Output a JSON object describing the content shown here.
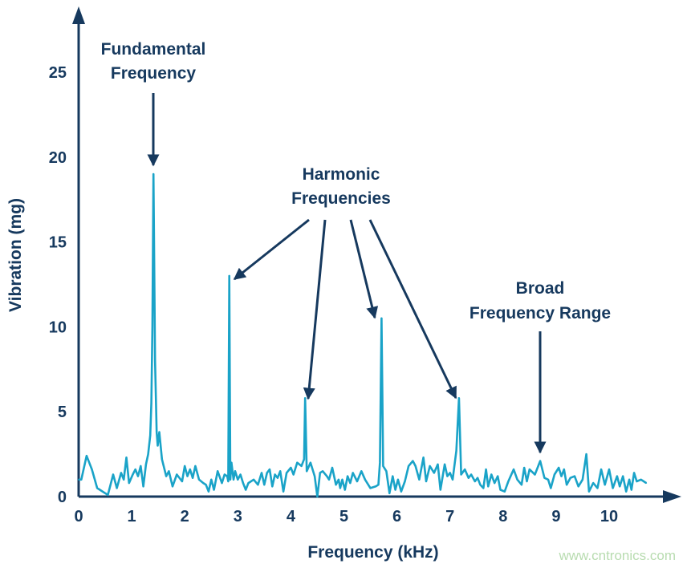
{
  "chart_data": {
    "type": "line",
    "xlabel": "Frequency (kHz)",
    "ylabel": "Vibration (mg)",
    "xlim": [
      0,
      11
    ],
    "ylim": [
      0,
      27
    ],
    "xticks": [
      "0",
      "1",
      "2",
      "3",
      "4",
      "5",
      "6",
      "7",
      "8",
      "9",
      "10"
    ],
    "yticks": [
      "0",
      "5",
      "10",
      "15",
      "20",
      "25"
    ],
    "grid": false,
    "colors": {
      "line": "#1aa3c8",
      "axis": "#16395e",
      "text": "#16395e"
    },
    "annotations": [
      {
        "lines": [
          "Fundamental",
          "Frequency"
        ],
        "points_to": [
          [
            1.41,
            19
          ]
        ]
      },
      {
        "lines": [
          "Harmonic",
          "Frequencies"
        ],
        "points_to": [
          [
            2.83,
            13
          ],
          [
            4.27,
            5.8
          ],
          [
            5.71,
            10.5
          ],
          [
            7.17,
            5.8
          ]
        ]
      },
      {
        "lines": [
          "Broad",
          "Frequency Range"
        ],
        "points_to": [
          [
            8.75,
            2.5
          ]
        ]
      }
    ],
    "series": [
      {
        "points": [
          [
            0,
            1.0
          ],
          [
            0.05,
            1.0
          ],
          [
            0.15,
            2.4
          ],
          [
            0.25,
            1.6
          ],
          [
            0.35,
            0.5
          ],
          [
            0.5,
            0.2
          ],
          [
            0.55,
            0.1
          ],
          [
            0.65,
            1.3
          ],
          [
            0.72,
            0.5
          ],
          [
            0.8,
            1.4
          ],
          [
            0.85,
            1.0
          ],
          [
            0.9,
            2.3
          ],
          [
            0.95,
            0.8
          ],
          [
            1.02,
            1.3
          ],
          [
            1.07,
            1.6
          ],
          [
            1.12,
            1.2
          ],
          [
            1.17,
            1.8
          ],
          [
            1.22,
            0.6
          ],
          [
            1.27,
            1.9
          ],
          [
            1.31,
            2.5
          ],
          [
            1.35,
            3.6
          ],
          [
            1.37,
            5.5
          ],
          [
            1.39,
            10
          ],
          [
            1.41,
            19
          ],
          [
            1.44,
            8
          ],
          [
            1.47,
            3.8
          ],
          [
            1.49,
            3.0
          ],
          [
            1.52,
            3.8
          ],
          [
            1.57,
            2.2
          ],
          [
            1.65,
            1.2
          ],
          [
            1.7,
            1.5
          ],
          [
            1.77,
            0.6
          ],
          [
            1.85,
            1.3
          ],
          [
            1.95,
            0.9
          ],
          [
            2.0,
            1.8
          ],
          [
            2.05,
            1.2
          ],
          [
            2.1,
            1.6
          ],
          [
            2.15,
            1.1
          ],
          [
            2.2,
            1.8
          ],
          [
            2.27,
            1.0
          ],
          [
            2.35,
            0.8
          ],
          [
            2.4,
            0.7
          ],
          [
            2.45,
            0.3
          ],
          [
            2.5,
            1.0
          ],
          [
            2.55,
            0.4
          ],
          [
            2.62,
            1.5
          ],
          [
            2.7,
            0.8
          ],
          [
            2.75,
            1.3
          ],
          [
            2.8,
            1.2
          ],
          [
            2.82,
            0.9
          ],
          [
            2.84,
            13
          ],
          [
            2.86,
            1.0
          ],
          [
            2.88,
            2.0
          ],
          [
            2.92,
            1.0
          ],
          [
            2.95,
            1.5
          ],
          [
            3.0,
            1.0
          ],
          [
            3.05,
            1.3
          ],
          [
            3.1,
            0.8
          ],
          [
            3.15,
            0.4
          ],
          [
            3.2,
            0.8
          ],
          [
            3.3,
            1.0
          ],
          [
            3.38,
            0.7
          ],
          [
            3.45,
            1.4
          ],
          [
            3.5,
            0.7
          ],
          [
            3.55,
            1.4
          ],
          [
            3.6,
            1.6
          ],
          [
            3.65,
            0.6
          ],
          [
            3.7,
            1.3
          ],
          [
            3.75,
            1.1
          ],
          [
            3.8,
            1.5
          ],
          [
            3.86,
            0.3
          ],
          [
            3.92,
            1.4
          ],
          [
            4.0,
            1.7
          ],
          [
            4.05,
            1.3
          ],
          [
            4.12,
            2.0
          ],
          [
            4.2,
            1.8
          ],
          [
            4.25,
            2.2
          ],
          [
            4.27,
            5.8
          ],
          [
            4.3,
            1.5
          ],
          [
            4.37,
            2.0
          ],
          [
            4.45,
            1.2
          ],
          [
            4.5,
            0.0
          ],
          [
            4.55,
            1.4
          ],
          [
            4.6,
            1.5
          ],
          [
            4.68,
            1.2
          ],
          [
            4.72,
            1.0
          ],
          [
            4.78,
            1.7
          ],
          [
            4.85,
            0.7
          ],
          [
            4.9,
            1.0
          ],
          [
            4.93,
            0.5
          ],
          [
            4.97,
            1.0
          ],
          [
            5.02,
            0.4
          ],
          [
            5.07,
            1.2
          ],
          [
            5.12,
            0.8
          ],
          [
            5.17,
            1.4
          ],
          [
            5.25,
            0.9
          ],
          [
            5.33,
            1.5
          ],
          [
            5.4,
            1.0
          ],
          [
            5.5,
            0.5
          ],
          [
            5.6,
            0.6
          ],
          [
            5.65,
            0.7
          ],
          [
            5.68,
            2.0
          ],
          [
            5.71,
            10.5
          ],
          [
            5.74,
            1.8
          ],
          [
            5.8,
            1.5
          ],
          [
            5.86,
            0.2
          ],
          [
            5.92,
            1.2
          ],
          [
            5.97,
            0.4
          ],
          [
            6.02,
            1.0
          ],
          [
            6.08,
            0.3
          ],
          [
            6.15,
            0.9
          ],
          [
            6.22,
            1.8
          ],
          [
            6.3,
            2.1
          ],
          [
            6.35,
            1.8
          ],
          [
            6.42,
            1.0
          ],
          [
            6.5,
            2.3
          ],
          [
            6.55,
            0.9
          ],
          [
            6.62,
            1.8
          ],
          [
            6.7,
            1.4
          ],
          [
            6.77,
            1.9
          ],
          [
            6.82,
            0.4
          ],
          [
            6.9,
            1.9
          ],
          [
            6.95,
            1.2
          ],
          [
            7.0,
            1.4
          ],
          [
            7.05,
            1.0
          ],
          [
            7.12,
            2.7
          ],
          [
            7.17,
            5.8
          ],
          [
            7.21,
            1.3
          ],
          [
            7.28,
            1.6
          ],
          [
            7.35,
            1.1
          ],
          [
            7.4,
            1.3
          ],
          [
            7.47,
            0.9
          ],
          [
            7.52,
            1.1
          ],
          [
            7.57,
            0.7
          ],
          [
            7.63,
            0.5
          ],
          [
            7.68,
            1.6
          ],
          [
            7.72,
            0.6
          ],
          [
            7.78,
            1.3
          ],
          [
            7.84,
            0.8
          ],
          [
            7.9,
            1.2
          ],
          [
            7.95,
            0.4
          ],
          [
            8.03,
            0.3
          ],
          [
            8.1,
            0.9
          ],
          [
            8.2,
            1.6
          ],
          [
            8.27,
            1.0
          ],
          [
            8.35,
            0.7
          ],
          [
            8.4,
            1.7
          ],
          [
            8.45,
            0.9
          ],
          [
            8.5,
            1.6
          ],
          [
            8.6,
            1.3
          ],
          [
            8.7,
            2.1
          ],
          [
            8.78,
            1.1
          ],
          [
            8.85,
            1.0
          ],
          [
            8.9,
            0.5
          ],
          [
            8.97,
            1.3
          ],
          [
            9.05,
            1.7
          ],
          [
            9.1,
            1.2
          ],
          [
            9.15,
            1.6
          ],
          [
            9.2,
            0.7
          ],
          [
            9.27,
            1.1
          ],
          [
            9.35,
            1.2
          ],
          [
            9.42,
            0.6
          ],
          [
            9.5,
            1.0
          ],
          [
            9.57,
            2.5
          ],
          [
            9.62,
            0.3
          ],
          [
            9.7,
            0.8
          ],
          [
            9.78,
            0.5
          ],
          [
            9.85,
            1.6
          ],
          [
            9.92,
            0.7
          ],
          [
            10.0,
            1.6
          ],
          [
            10.07,
            0.5
          ],
          [
            10.15,
            1.2
          ],
          [
            10.2,
            0.6
          ],
          [
            10.26,
            1.2
          ],
          [
            10.32,
            0.3
          ],
          [
            10.38,
            1.0
          ],
          [
            10.42,
            0.4
          ],
          [
            10.47,
            1.4
          ],
          [
            10.52,
            0.9
          ],
          [
            10.6,
            1.0
          ],
          [
            10.7,
            0.8
          ]
        ]
      }
    ]
  },
  "watermark": "www.cntronics.com"
}
